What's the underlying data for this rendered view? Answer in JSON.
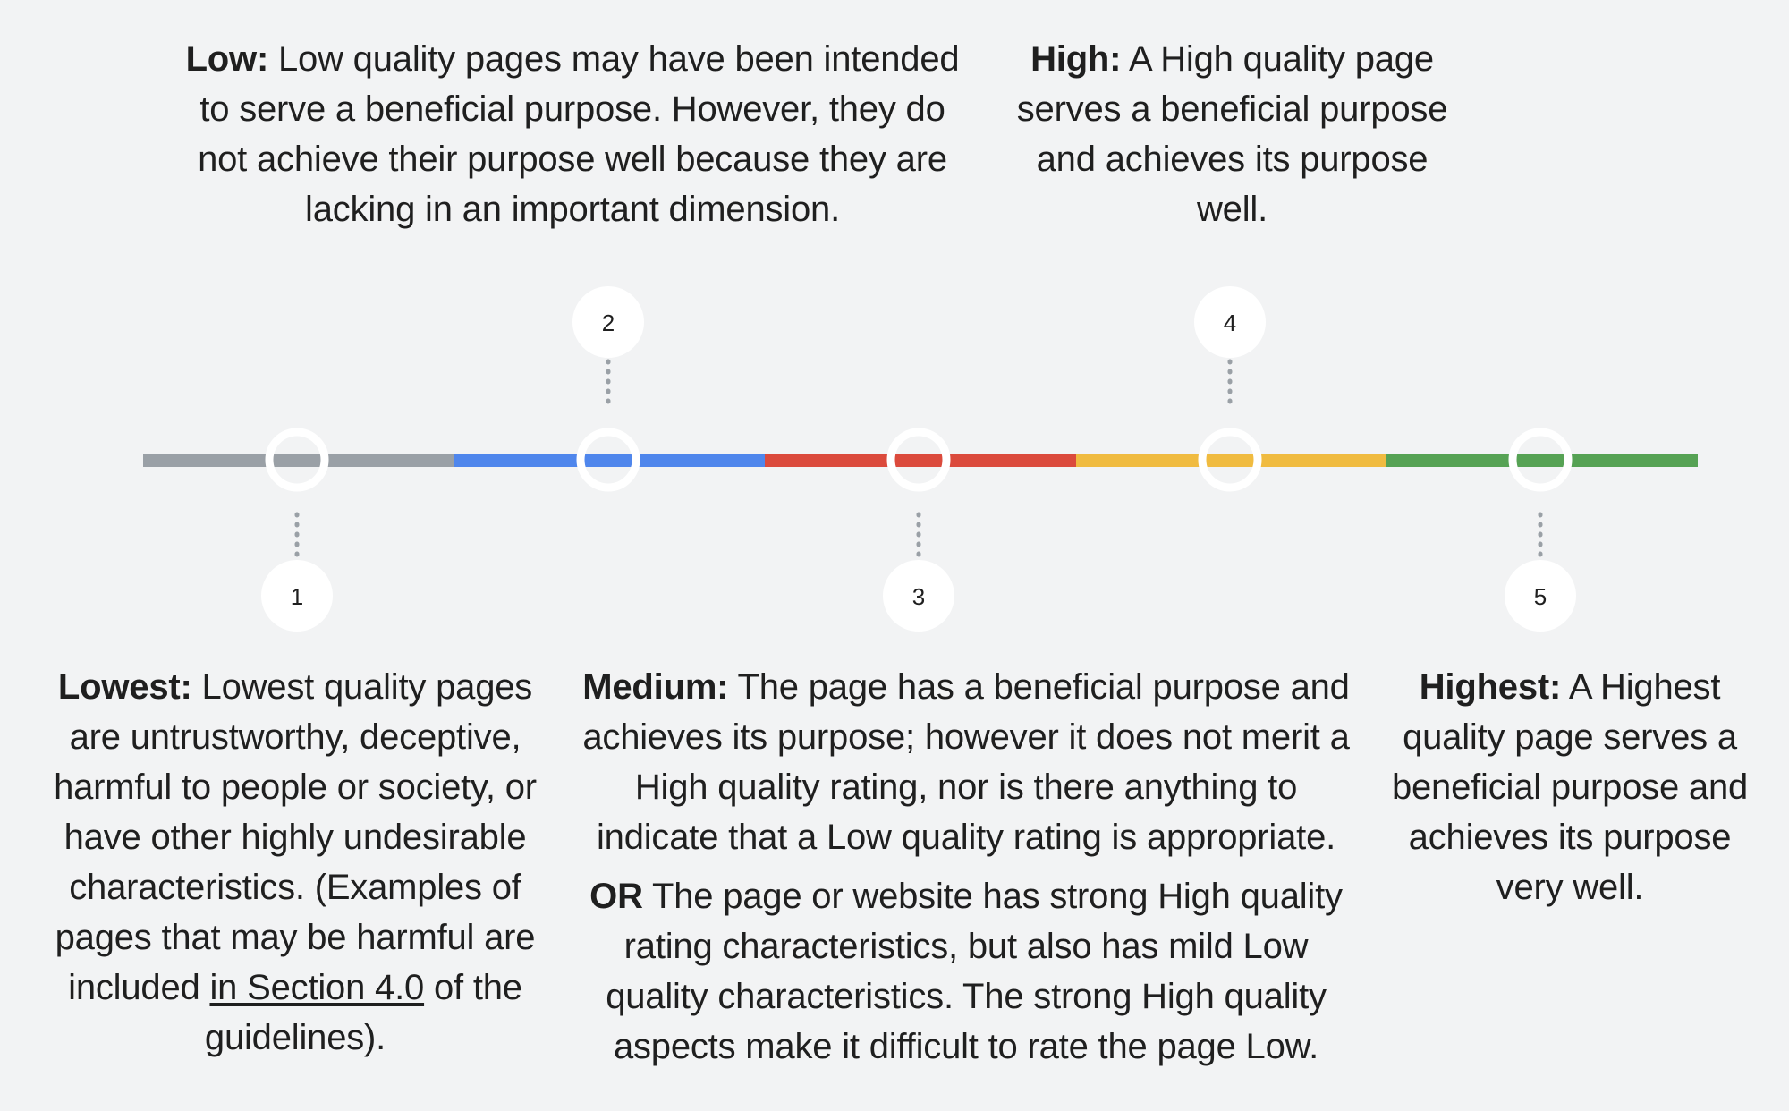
{
  "scale": {
    "segment_colors": [
      "#9aa0a6",
      "#4f86ec",
      "#db4a3c",
      "#f0bb40",
      "#56a254"
    ],
    "markers": [
      {
        "number": "1",
        "label_side": "below"
      },
      {
        "number": "2",
        "label_side": "above"
      },
      {
        "number": "3",
        "label_side": "below"
      },
      {
        "number": "4",
        "label_side": "above"
      },
      {
        "number": "5",
        "label_side": "below"
      }
    ]
  },
  "descriptions": {
    "low": {
      "title": "Low:",
      "text": " Low quality pages may have been intended to serve a beneficial purpose. However, they do not achieve their purpose well because they are lacking in an important dimension."
    },
    "high": {
      "title": "High:",
      "text": " A High quality page serves a beneficial purpose and achieves its purpose well."
    },
    "lowest": {
      "title": "Lowest:",
      "text": " Lowest quality pages are untrustworthy, deceptive, harmful to people or society, or have other highly undesirable characteristics. (Examples of pages that may be harmful are included ",
      "link": "in Section 4.0",
      "text_after": " of the guidelines)."
    },
    "medium": {
      "title": "Medium:",
      "text": " The page has a beneficial purpose and achieves its purpose; however it does not merit a High quality rating, nor is there anything to indicate that a Low quality rating is appropriate.",
      "or_label": "OR",
      "or_text": " The page or website has strong High quality rating characteristics, but also has mild Low quality characteristics. The strong High quality aspects make it difficult to rate the page Low."
    },
    "highest": {
      "title": "Highest:",
      "text": "  A Highest quality page serves a beneficial purpose and achieves its purpose very well."
    }
  }
}
